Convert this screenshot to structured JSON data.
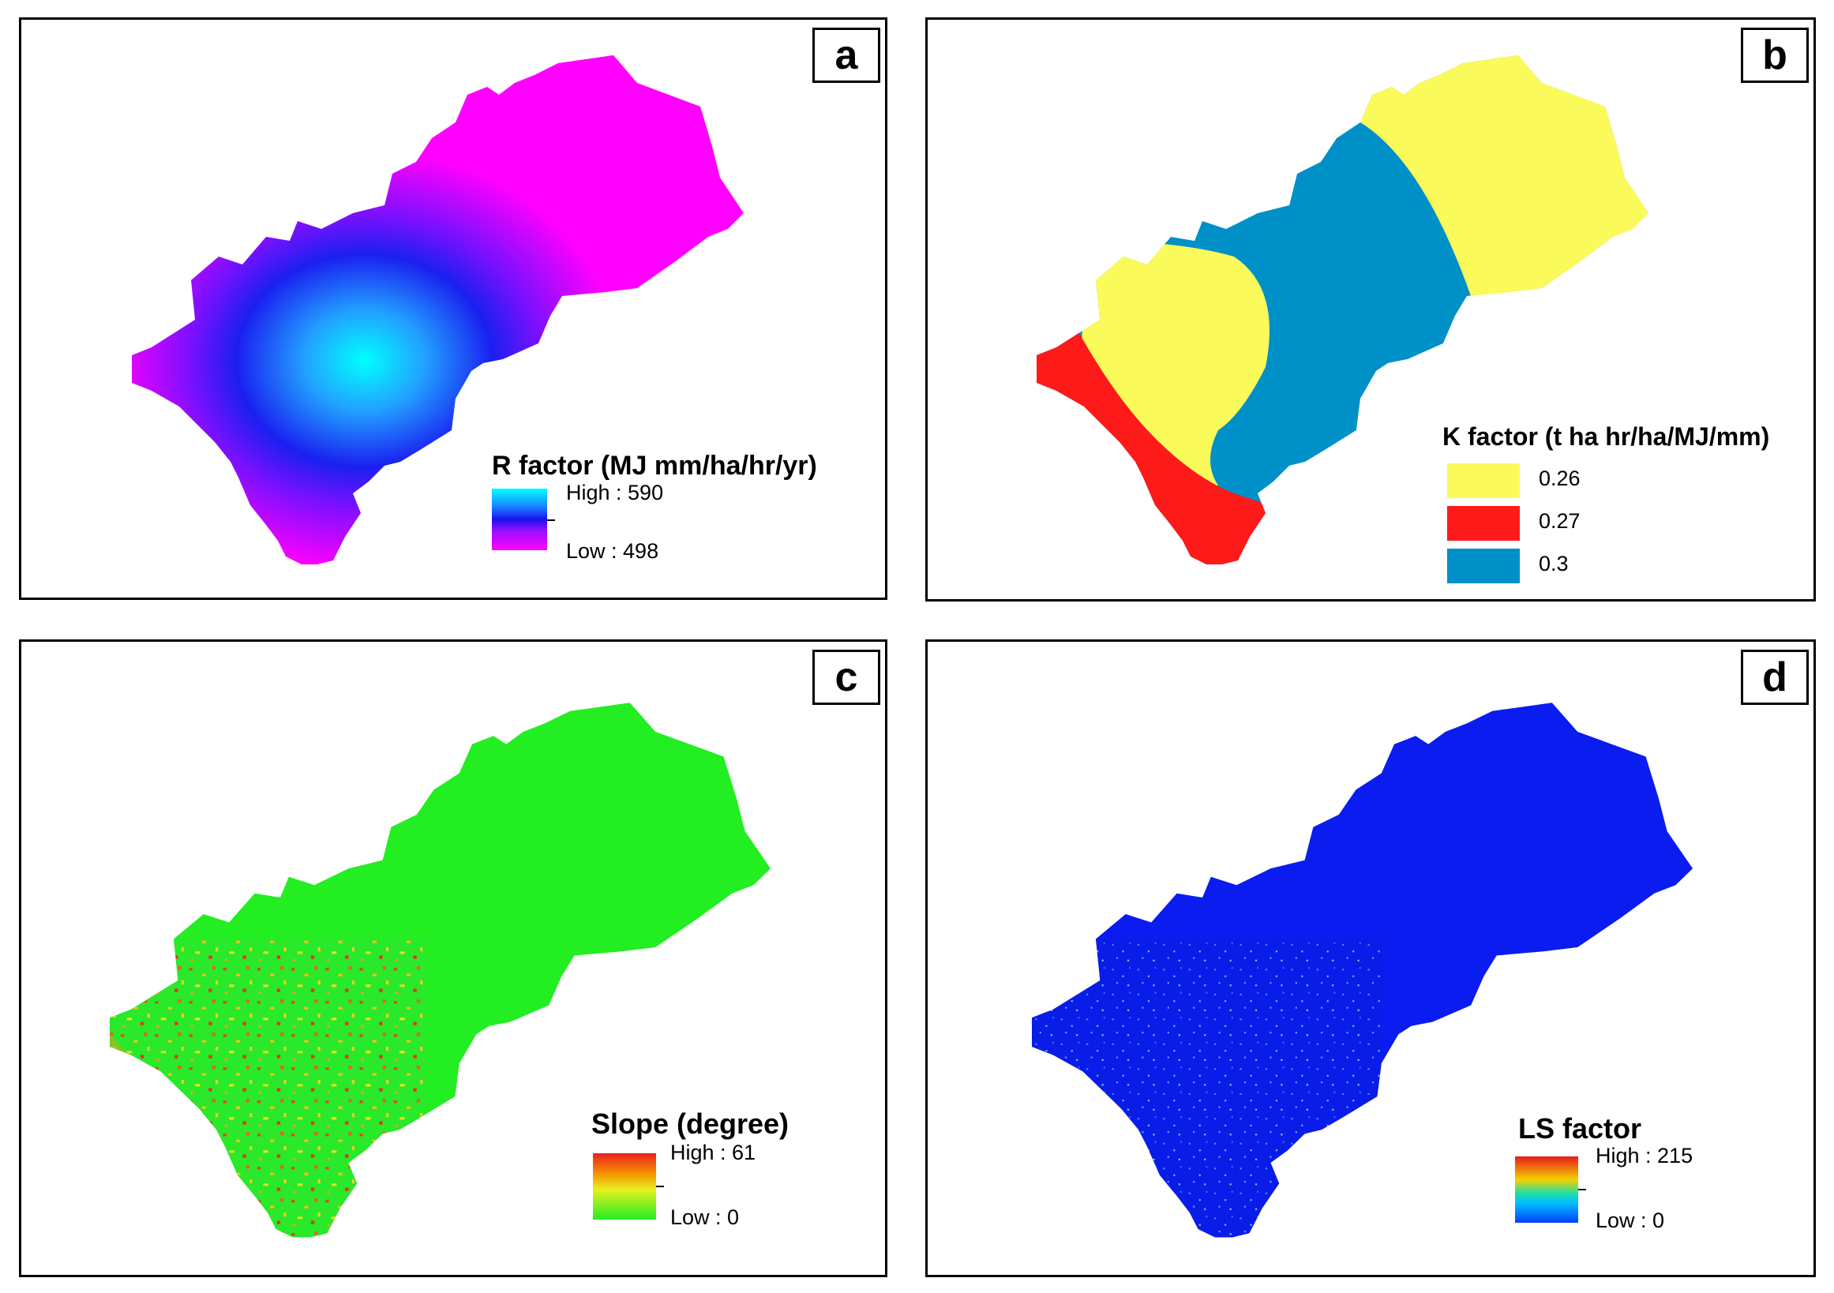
{
  "colors": {
    "r_low": "#ff00ff",
    "r_mid": "#3300ff",
    "r_high": "#00ffff",
    "k_026": "#fafa5a",
    "k_027": "#ff1a1a",
    "k_03": "#0090c8",
    "slope_base": "#22ee22",
    "slope_high": "#e8401a",
    "ls_base": "#0a1cf0"
  },
  "panels": {
    "a": {
      "letter": "a",
      "legend_title": "R factor (MJ mm/ha/hr/yr)",
      "high_label": "High : 590",
      "low_label": "Low : 498",
      "ramp": [
        "#00ffff",
        "#3300ff",
        "#ff00ff"
      ]
    },
    "b": {
      "letter": "b",
      "legend_title": "K factor (t ha hr/ha/MJ/mm)",
      "classes": [
        {
          "label": "0.26",
          "color": "#fafa5a"
        },
        {
          "label": "0.27",
          "color": "#ff1a1a"
        },
        {
          "label": "0.3",
          "color": "#0090c8"
        }
      ]
    },
    "c": {
      "letter": "c",
      "legend_title": "Slope (degree)",
      "high_label": "High : 61",
      "low_label": "Low : 0",
      "ramp": [
        "#e8201a",
        "#f5a000",
        "#e8f020",
        "#22ee22"
      ]
    },
    "d": {
      "letter": "d",
      "legend_title": "LS factor",
      "high_label": "High : 215",
      "low_label": "Low : 0",
      "ramp": [
        "#e81a1a",
        "#f5d000",
        "#20e0a0",
        "#0060ff"
      ]
    }
  }
}
